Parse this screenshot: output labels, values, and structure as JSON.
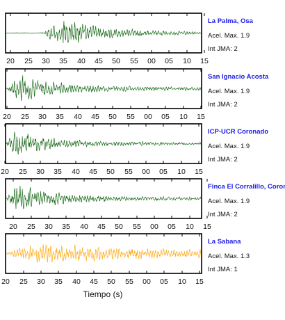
{
  "chart_data": {
    "type": "line",
    "xlabel": "Tiempo (s)",
    "x_tick_labels": [
      "20",
      "25",
      "30",
      "35",
      "40",
      "45",
      "50",
      "55",
      "00",
      "05",
      "10",
      "15"
    ],
    "series": [
      {
        "name": "La Palma, Osa",
        "acel_label": "Acel. Max. 1.9",
        "jma_label": "Int JMA: 2",
        "color": "#1a6b1a",
        "x_ticks": [
          15,
          41,
          66,
          91,
          117,
          142,
          167,
          193,
          218,
          243,
          269,
          294
        ],
        "envelope": {
          "onset": 0.18,
          "peak": 0.3,
          "decay": 0.25,
          "amp": 0.95,
          "base": 0.05,
          "seed": 3
        }
      },
      {
        "name": "San Ignacio Acosta",
        "acel_label": "Acel. Max. 1.9",
        "jma_label": "Int JMA: 2",
        "color": "#1a6b1a",
        "x_ticks": [
          10,
          36,
          61,
          86,
          112,
          137,
          162,
          188,
          213,
          238,
          264,
          289
        ],
        "envelope": {
          "onset": 0.0,
          "peak": 0.07,
          "decay": 0.2,
          "amp": 1.0,
          "base": 0.12,
          "seed": 7
        }
      },
      {
        "name": "ICP-UCR Coronado",
        "acel_label": "Acel. Max. 1.9",
        "jma_label": "Int JMA: 2",
        "color": "#1a6b1a",
        "x_ticks": [
          7,
          33,
          58,
          83,
          109,
          134,
          159,
          185,
          210,
          235,
          261,
          286
        ],
        "envelope": {
          "onset": 0.0,
          "peak": 0.04,
          "decay": 0.2,
          "amp": 1.0,
          "base": 0.1,
          "seed": 11
        }
      },
      {
        "name": "Finca El Corralillo, Coronado",
        "acel_label": "Acel. Max. 1.9",
        "jma_label": "Int JMA: 2",
        "color": "#1a6b1a",
        "x_ticks": [
          19,
          45,
          70,
          95,
          121,
          146,
          171,
          197,
          222,
          247,
          273,
          298
        ],
        "envelope": {
          "onset": 0.0,
          "peak": 0.05,
          "decay": 0.25,
          "amp": 1.0,
          "base": 0.1,
          "seed": 19
        }
      },
      {
        "name": "La Sabana",
        "acel_label": "Acel. Max. 1.3",
        "jma_label": "Int JMA: 1",
        "color": "#ffaa1a",
        "x_ticks": [
          8,
          34,
          59,
          84,
          110,
          135,
          160,
          186,
          211,
          236,
          262,
          287
        ],
        "envelope": {
          "onset": 0.0,
          "peak": 0.15,
          "decay": 0.45,
          "amp": 0.85,
          "base": 0.2,
          "seed": 23
        }
      }
    ]
  }
}
